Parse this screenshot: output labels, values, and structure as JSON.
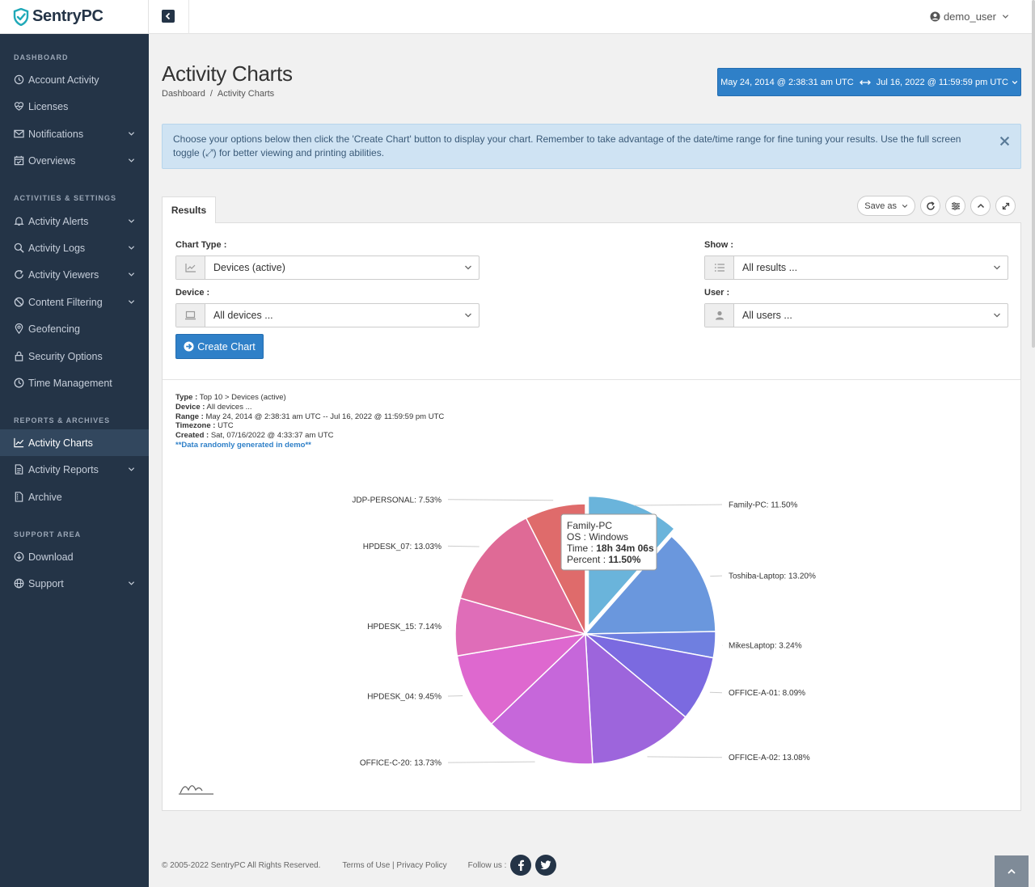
{
  "brand": {
    "name": "SentryPC"
  },
  "topbar": {
    "username": "demo_user"
  },
  "sidebar": {
    "sections": [
      {
        "title": "DASHBOARD",
        "items": [
          {
            "label": "Account Activity",
            "icon": "history-icon",
            "expandable": false
          },
          {
            "label": "Licenses",
            "icon": "heart-pulse-icon",
            "expandable": false
          },
          {
            "label": "Notifications",
            "icon": "envelope-icon",
            "expandable": true
          },
          {
            "label": "Overviews",
            "icon": "calendar-check-icon",
            "expandable": true
          }
        ]
      },
      {
        "title": "ACTIVITIES & SETTINGS",
        "items": [
          {
            "label": "Activity Alerts",
            "icon": "bell-icon",
            "expandable": true
          },
          {
            "label": "Activity Logs",
            "icon": "search-icon",
            "expandable": true
          },
          {
            "label": "Activity Viewers",
            "icon": "refresh-icon",
            "expandable": true
          },
          {
            "label": "Content Filtering",
            "icon": "ban-icon",
            "expandable": true
          },
          {
            "label": "Geofencing",
            "icon": "map-marker-icon",
            "expandable": false
          },
          {
            "label": "Security Options",
            "icon": "lock-icon",
            "expandable": false
          },
          {
            "label": "Time Management",
            "icon": "clock-icon",
            "expandable": false
          }
        ]
      },
      {
        "title": "REPORTS & ARCHIVES",
        "items": [
          {
            "label": "Activity Charts",
            "icon": "line-chart-icon",
            "expandable": false,
            "active": true
          },
          {
            "label": "Activity Reports",
            "icon": "file-text-icon",
            "expandable": true
          },
          {
            "label": "Archive",
            "icon": "archive-file-icon",
            "expandable": false
          }
        ]
      },
      {
        "title": "SUPPORT AREA",
        "items": [
          {
            "label": "Download",
            "icon": "download-icon",
            "expandable": false
          },
          {
            "label": "Support",
            "icon": "globe-icon",
            "expandable": true
          }
        ]
      }
    ]
  },
  "page": {
    "title": "Activity Charts",
    "breadcrumb": [
      "Dashboard",
      "/",
      "Activity Charts"
    ],
    "date_start": "May 24, 2014 @ 2:38:31 am UTC",
    "date_end": "Jul 16, 2022 @ 11:59:59 pm UTC"
  },
  "info_banner": {
    "text": "Choose your options below then click the 'Create Chart' button to display your chart.  Remember to take advantage of the date/time range for fine tuning your results.  Use the full screen toggle (⤢) for better viewing and printing abilities."
  },
  "tabs": {
    "results": "Results"
  },
  "tools": {
    "save_as": "Save as"
  },
  "form": {
    "chart_type_label": "Chart Type :",
    "chart_type_value": "Devices (active)",
    "device_label": "Device :",
    "device_value": "All devices ...",
    "show_label": "Show :",
    "show_value": "All results ...",
    "user_label": "User :",
    "user_value": "All users ...",
    "create_button": "Create Chart"
  },
  "meta": {
    "type_label": "Type :",
    "type_value": " Top 10 > Devices (active)",
    "device_label": "Device :",
    "device_value": " All devices ...",
    "range_label": "Range :",
    "range_value": " May 24, 2014 @ 2:38:31 am UTC -- Jul 16, 2022 @ 11:59:59 pm UTC",
    "timezone_label": "Timezone :",
    "timezone_value": " UTC",
    "created_label": "Created :",
    "created_value": " Sat, 07/16/2022 @ 4:33:37 am UTC",
    "demo_note": "**Data randomly generated in demo**"
  },
  "chart_data": {
    "type": "pie",
    "categories": [
      "Family-PC",
      "Toshiba-Laptop",
      "MikesLaptop",
      "OFFICE-A-01",
      "OFFICE-A-02",
      "OFFICE-C-20",
      "HPDESK_04",
      "HPDESK_15",
      "HPDESK_07",
      "JDP-PERSONAL"
    ],
    "values": [
      11.5,
      13.2,
      3.24,
      8.09,
      13.08,
      13.73,
      9.45,
      7.14,
      13.03,
      7.53
    ],
    "labels": [
      "Family-PC: 11.50%",
      "Toshiba-Laptop: 13.20%",
      "MikesLaptop: 3.24%",
      "OFFICE-A-01: 8.09%",
      "OFFICE-A-02: 13.08%",
      "OFFICE-C-20: 13.73%",
      "HPDESK_04: 9.45%",
      "HPDESK_15: 7.14%",
      "HPDESK_07: 13.03%",
      "JDP-PERSONAL: 7.53%"
    ],
    "colors": [
      "#6ab4db",
      "#6a97dd",
      "#6f7fe0",
      "#7b6ae0",
      "#9d65dc",
      "#c667da",
      "#de68cf",
      "#df6db8",
      "#df6a96",
      "#df6b6b"
    ],
    "tooltip": {
      "title": "Family-PC",
      "os_label": "OS : ",
      "os_value": "Windows",
      "time_label": "Time : ",
      "time_value": "18h 34m 06s",
      "percent_label": "Percent : ",
      "percent_value": "11.50%"
    }
  },
  "footer": {
    "copyright": "© 2005-2022 SentryPC All Rights Reserved.",
    "terms": "Terms of Use",
    "divider": " | ",
    "privacy": "Privacy Policy",
    "follow": "Follow us :"
  }
}
